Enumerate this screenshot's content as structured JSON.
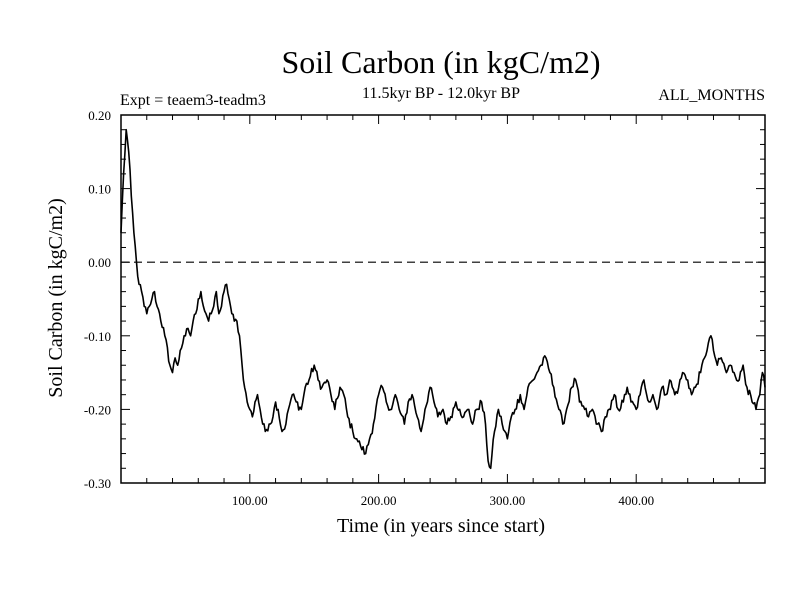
{
  "chart_data": {
    "type": "line",
    "title": "Soil Carbon (in kgC/m2)",
    "subtitle": "11.5kyr BP - 12.0kyr BP",
    "experiment_label": "Expt = teaem3-teadm3",
    "months_label": "ALL_MONTHS",
    "xlabel": "Time (in years since start)",
    "ylabel": "Soil Carbon (in kgC/m2)",
    "xlim": [
      0,
      500
    ],
    "ylim": [
      -0.3,
      0.2
    ],
    "x_ticks": [
      100,
      200,
      300,
      400
    ],
    "x_tick_labels": [
      "100.00",
      "200.00",
      "300.00",
      "400.00"
    ],
    "y_ticks": [
      0.2,
      0.1,
      0.0,
      -0.1,
      -0.2,
      -0.3
    ],
    "y_tick_labels": [
      "0.20",
      "0.10",
      "0.00",
      "-0.10",
      "-0.20",
      "-0.30"
    ],
    "reference_line": {
      "y": 0.0,
      "style": "dashed"
    },
    "series": [
      {
        "name": "teaem3-teadm3",
        "x": [
          0,
          2,
          4,
          6,
          8,
          10,
          12,
          14,
          16,
          18,
          20,
          22,
          24,
          26,
          28,
          30,
          34,
          38,
          40,
          42,
          44,
          46,
          48,
          50,
          52,
          54,
          56,
          58,
          60,
          62,
          64,
          66,
          68,
          70,
          72,
          74,
          76,
          78,
          80,
          82,
          84,
          86,
          88,
          90,
          92,
          94,
          96,
          98,
          100,
          102,
          104,
          106,
          108,
          110,
          112,
          115,
          118,
          120,
          122,
          125,
          128,
          130,
          133,
          136,
          140,
          143,
          146,
          150,
          153,
          156,
          160,
          163,
          166,
          170,
          173,
          176,
          180,
          183,
          186,
          190,
          193,
          196,
          200,
          203,
          206,
          210,
          213,
          216,
          220,
          223,
          226,
          230,
          233,
          236,
          240,
          243,
          246,
          250,
          253,
          256,
          260,
          263,
          266,
          270,
          273,
          276,
          280,
          283,
          285,
          287,
          290,
          293,
          296,
          300,
          303,
          306,
          310,
          313,
          316,
          320,
          323,
          326,
          330,
          333,
          336,
          340,
          343,
          346,
          350,
          353,
          356,
          360,
          363,
          366,
          370,
          373,
          376,
          380,
          383,
          386,
          390,
          393,
          396,
          400,
          403,
          406,
          410,
          413,
          416,
          420,
          423,
          426,
          430,
          433,
          436,
          440,
          443,
          446,
          450,
          453,
          456,
          458,
          460,
          463,
          466,
          470,
          473,
          476,
          480,
          483,
          486,
          490,
          493,
          496,
          498,
          500
        ],
        "values": [
          0.04,
          0.12,
          0.18,
          0.15,
          0.09,
          0.04,
          0.0,
          -0.03,
          -0.04,
          -0.06,
          -0.07,
          -0.06,
          -0.05,
          -0.04,
          -0.06,
          -0.07,
          -0.1,
          -0.14,
          -0.15,
          -0.13,
          -0.14,
          -0.12,
          -0.11,
          -0.1,
          -0.09,
          -0.1,
          -0.08,
          -0.07,
          -0.05,
          -0.04,
          -0.06,
          -0.07,
          -0.08,
          -0.07,
          -0.06,
          -0.04,
          -0.07,
          -0.06,
          -0.04,
          -0.03,
          -0.05,
          -0.07,
          -0.08,
          -0.08,
          -0.1,
          -0.14,
          -0.17,
          -0.19,
          -0.2,
          -0.21,
          -0.19,
          -0.18,
          -0.2,
          -0.22,
          -0.23,
          -0.22,
          -0.21,
          -0.19,
          -0.2,
          -0.23,
          -0.22,
          -0.2,
          -0.18,
          -0.19,
          -0.2,
          -0.17,
          -0.16,
          -0.14,
          -0.16,
          -0.17,
          -0.16,
          -0.18,
          -0.2,
          -0.17,
          -0.18,
          -0.21,
          -0.23,
          -0.24,
          -0.25,
          -0.26,
          -0.24,
          -0.22,
          -0.18,
          -0.17,
          -0.19,
          -0.2,
          -0.18,
          -0.2,
          -0.22,
          -0.19,
          -0.18,
          -0.21,
          -0.23,
          -0.2,
          -0.17,
          -0.19,
          -0.21,
          -0.2,
          -0.22,
          -0.21,
          -0.19,
          -0.2,
          -0.21,
          -0.2,
          -0.22,
          -0.2,
          -0.19,
          -0.22,
          -0.27,
          -0.28,
          -0.23,
          -0.2,
          -0.22,
          -0.24,
          -0.21,
          -0.2,
          -0.18,
          -0.2,
          -0.17,
          -0.16,
          -0.15,
          -0.14,
          -0.13,
          -0.15,
          -0.17,
          -0.2,
          -0.22,
          -0.2,
          -0.17,
          -0.16,
          -0.19,
          -0.2,
          -0.21,
          -0.2,
          -0.22,
          -0.23,
          -0.21,
          -0.2,
          -0.18,
          -0.2,
          -0.19,
          -0.17,
          -0.19,
          -0.2,
          -0.18,
          -0.16,
          -0.19,
          -0.18,
          -0.2,
          -0.17,
          -0.18,
          -0.16,
          -0.18,
          -0.17,
          -0.15,
          -0.16,
          -0.18,
          -0.17,
          -0.15,
          -0.13,
          -0.11,
          -0.1,
          -0.12,
          -0.14,
          -0.13,
          -0.15,
          -0.14,
          -0.15,
          -0.16,
          -0.14,
          -0.17,
          -0.19,
          -0.2,
          -0.18,
          -0.15,
          -0.17
        ]
      }
    ]
  }
}
